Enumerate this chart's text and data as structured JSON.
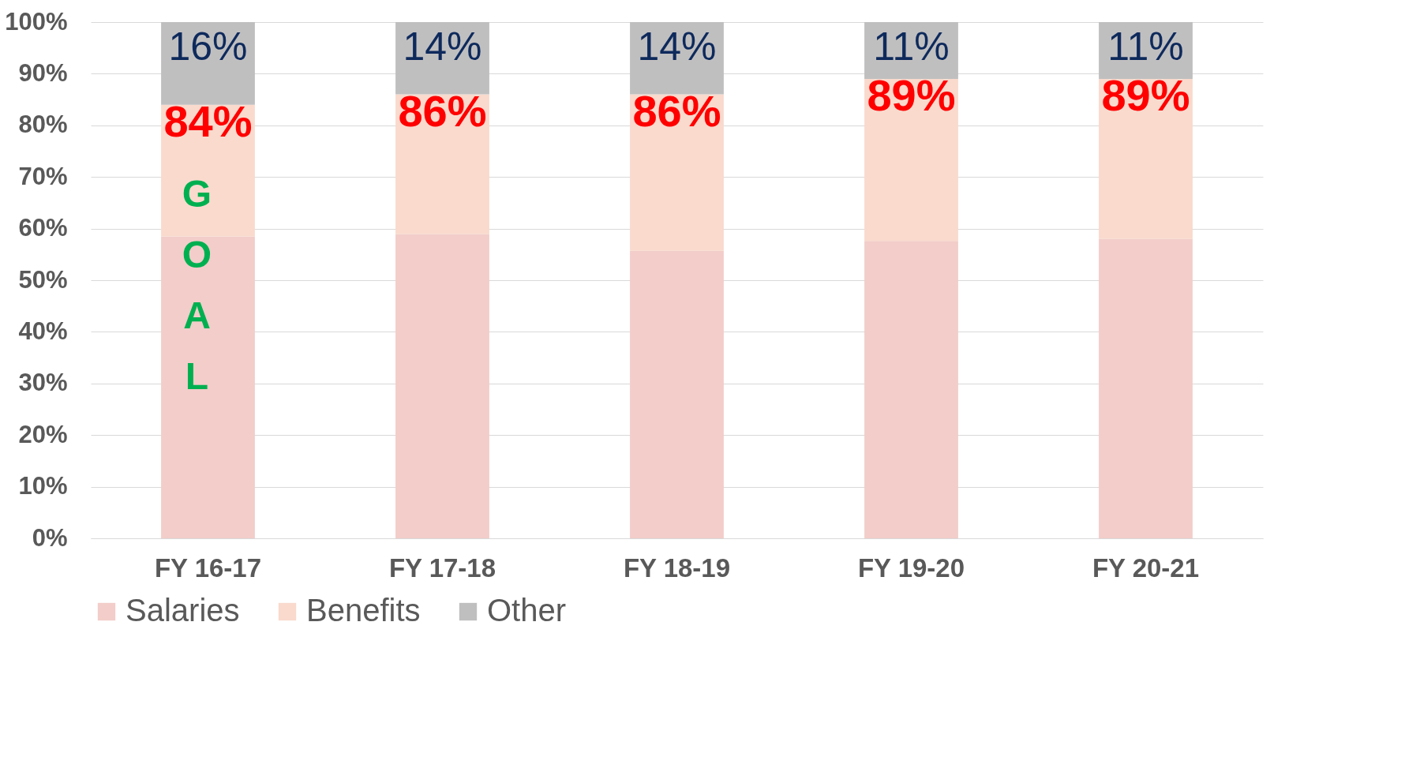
{
  "chart_data": {
    "type": "bar",
    "stacked": true,
    "categories": [
      "FY 16-17",
      "FY 17-18",
      "FY 18-19",
      "FY 19-20",
      "FY 20-21"
    ],
    "series": [
      {
        "name": "Salaries",
        "color": "#f2cdc9",
        "values": [
          58.5,
          58.9,
          55.7,
          57.6,
          58.0
        ]
      },
      {
        "name": "Benefits",
        "color": "#f9dacd",
        "values": [
          25.5,
          27.1,
          30.3,
          31.4,
          31.0
        ]
      },
      {
        "name": "Other",
        "color": "#c0bfc0",
        "values": [
          16,
          14,
          14,
          11,
          11
        ],
        "value_labels": [
          "16%",
          "14%",
          "14%",
          "11%",
          "11%"
        ]
      }
    ],
    "ylim": [
      0,
      100
    ],
    "yticks": [
      {
        "value": 0,
        "label": "0%"
      },
      {
        "value": 10,
        "label": "10%"
      },
      {
        "value": 20,
        "label": "20%"
      },
      {
        "value": 30,
        "label": "30%"
      },
      {
        "value": 40,
        "label": "40%"
      },
      {
        "value": 50,
        "label": "50%"
      },
      {
        "value": 60,
        "label": "60%"
      },
      {
        "value": 70,
        "label": "70%"
      },
      {
        "value": 80,
        "label": "80%"
      },
      {
        "value": 90,
        "label": "90%"
      },
      {
        "value": 100,
        "label": "100%"
      }
    ],
    "grid": "y",
    "legend": "bottom",
    "annotations": [
      {
        "text": "84%",
        "x": "FY 16-17",
        "y": 84
      },
      {
        "text": "86%",
        "x": "FY 17-18",
        "y": 86
      },
      {
        "text": "86%",
        "x": "FY 18-19",
        "y": 86
      },
      {
        "text": "89%",
        "x": "FY 19-20",
        "y": 89
      },
      {
        "text": "89%",
        "x": "FY 20-21",
        "y": 89
      },
      "GOAL"
    ]
  }
}
